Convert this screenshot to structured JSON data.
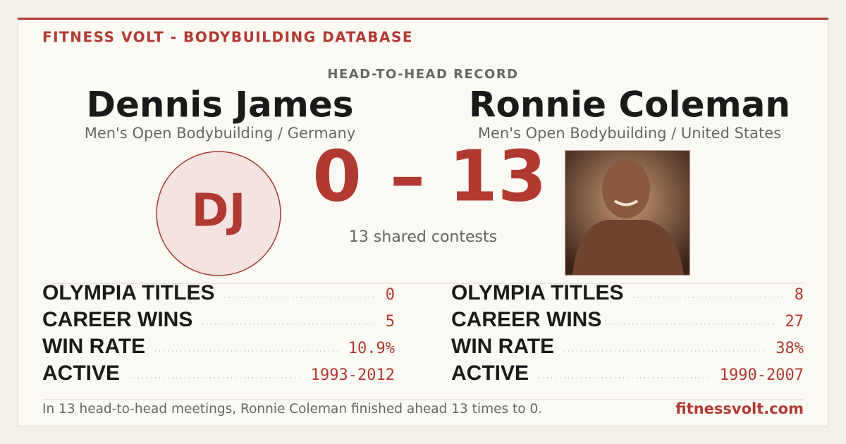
{
  "header": {
    "brand": "FITNESS VOLT - BODYBUILDING DATABASE"
  },
  "matchup": {
    "label": "HEAD-TO-HEAD RECORD",
    "score": {
      "left": 0,
      "separator": "–",
      "right": 13
    },
    "shared": "13 shared contests"
  },
  "athletes": [
    {
      "name": "Dennis James",
      "division": "Men's Open Bodybuilding / Germany",
      "initials": "DJ",
      "stats": [
        {
          "label": "OLYMPIA TITLES",
          "value": "0"
        },
        {
          "label": "CAREER WINS",
          "value": "5"
        },
        {
          "label": "WIN RATE",
          "value": "10.9%"
        },
        {
          "label": "ACTIVE",
          "value": "1993-2012"
        }
      ]
    },
    {
      "name": "Ronnie Coleman",
      "division": "Men's Open Bodybuilding / United States",
      "stats": [
        {
          "label": "OLYMPIA TITLES",
          "value": "8"
        },
        {
          "label": "CAREER WINS",
          "value": "27"
        },
        {
          "label": "WIN RATE",
          "value": "38%"
        },
        {
          "label": "ACTIVE",
          "value": "1990-2007"
        }
      ]
    }
  ],
  "footer": {
    "summary": "In 13 head-to-head meetings, Ronnie Coleman finished ahead 13 times to 0.",
    "site": "fitnessvolt.com"
  }
}
